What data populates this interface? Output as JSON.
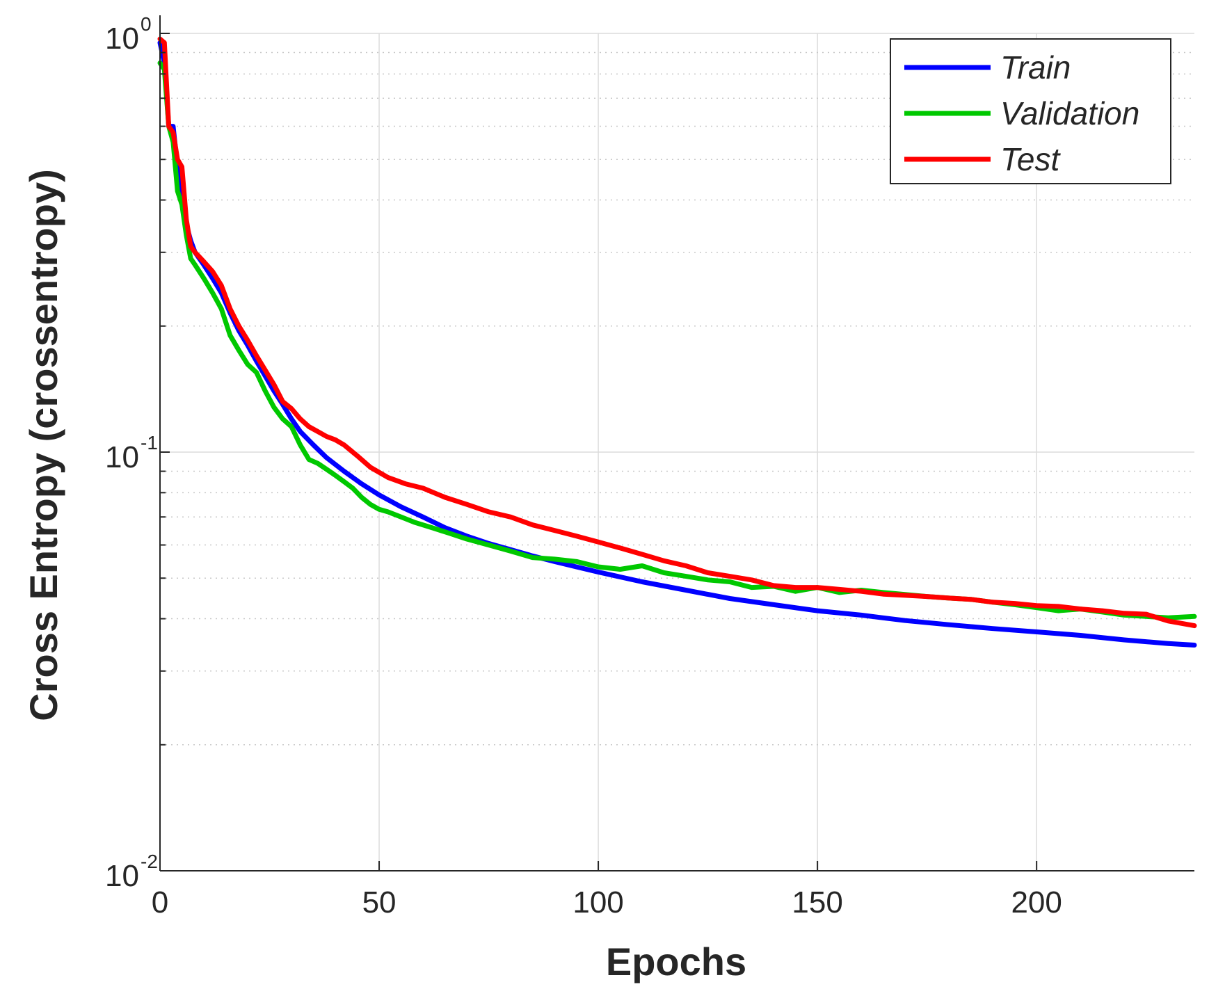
{
  "chart_data": {
    "type": "line",
    "xlabel": "Epochs",
    "ylabel": "Cross Entropy  (crossentropy)",
    "yscale": "log",
    "xlim": [
      0,
      236
    ],
    "ylim": [
      0.01,
      1
    ],
    "grid": true,
    "legend_position": "top-right",
    "x_ticks": [
      {
        "value": 0,
        "label": "0"
      },
      {
        "value": 50,
        "label": "50"
      },
      {
        "value": 100,
        "label": "100"
      },
      {
        "value": 150,
        "label": "150"
      },
      {
        "value": 200,
        "label": "200"
      }
    ],
    "y_ticks": [
      {
        "value": 1,
        "base": "10",
        "exp": "0"
      },
      {
        "value": 0.1,
        "base": "10",
        "exp": "-1"
      },
      {
        "value": 0.01,
        "base": "10",
        "exp": "-2"
      }
    ],
    "series": [
      {
        "name": "Train",
        "color": "#0000ff",
        "x": [
          0,
          1,
          2,
          3,
          4,
          5,
          6,
          7,
          8,
          10,
          12,
          14,
          16,
          18,
          20,
          22,
          24,
          26,
          28,
          30,
          32,
          35,
          38,
          42,
          46,
          50,
          55,
          60,
          65,
          70,
          75,
          80,
          85,
          90,
          95,
          100,
          110,
          120,
          130,
          140,
          150,
          160,
          170,
          180,
          190,
          200,
          210,
          220,
          230,
          236
        ],
        "y": [
          0.95,
          0.85,
          0.6,
          0.6,
          0.48,
          0.42,
          0.35,
          0.32,
          0.3,
          0.28,
          0.26,
          0.24,
          0.215,
          0.195,
          0.18,
          0.165,
          0.152,
          0.14,
          0.13,
          0.12,
          0.112,
          0.104,
          0.097,
          0.09,
          0.084,
          0.079,
          0.074,
          0.07,
          0.066,
          0.063,
          0.0605,
          0.0585,
          0.0565,
          0.0548,
          0.0532,
          0.0517,
          0.049,
          0.0468,
          0.0447,
          0.0432,
          0.0418,
          0.0408,
          0.0396,
          0.0387,
          0.0379,
          0.0372,
          0.0365,
          0.0356,
          0.0349,
          0.0346
        ]
      },
      {
        "name": "Validation",
        "color": "#00c800",
        "x": [
          0,
          1,
          2,
          3,
          4,
          5,
          6,
          7,
          8,
          10,
          12,
          14,
          16,
          18,
          20,
          22,
          24,
          26,
          28,
          30,
          32,
          34,
          36,
          38,
          40,
          42,
          44,
          46,
          48,
          50,
          52,
          55,
          58,
          62,
          66,
          70,
          75,
          80,
          85,
          90,
          95,
          100,
          105,
          110,
          115,
          120,
          125,
          130,
          135,
          140,
          145,
          150,
          155,
          160,
          165,
          170,
          175,
          180,
          185,
          190,
          195,
          200,
          205,
          210,
          215,
          220,
          225,
          230,
          236
        ],
        "y": [
          0.85,
          0.82,
          0.6,
          0.55,
          0.42,
          0.39,
          0.33,
          0.29,
          0.28,
          0.26,
          0.24,
          0.22,
          0.19,
          0.175,
          0.162,
          0.155,
          0.14,
          0.128,
          0.12,
          0.115,
          0.104,
          0.096,
          0.094,
          0.091,
          0.088,
          0.085,
          0.082,
          0.078,
          0.075,
          0.073,
          0.072,
          0.07,
          0.068,
          0.066,
          0.064,
          0.062,
          0.06,
          0.058,
          0.056,
          0.0555,
          0.0548,
          0.0532,
          0.0525,
          0.0535,
          0.0515,
          0.0505,
          0.0495,
          0.049,
          0.0475,
          0.0478,
          0.0465,
          0.0475,
          0.0462,
          0.0468,
          0.0462,
          0.0457,
          0.0452,
          0.0448,
          0.0445,
          0.0438,
          0.0432,
          0.0425,
          0.0418,
          0.0422,
          0.0415,
          0.0408,
          0.0405,
          0.0402,
          0.0405
        ]
      },
      {
        "name": "Test",
        "color": "#ff0000",
        "x": [
          0,
          1,
          2,
          3,
          4,
          5,
          6,
          7,
          8,
          10,
          12,
          14,
          16,
          18,
          20,
          22,
          24,
          26,
          28,
          30,
          32,
          34,
          36,
          38,
          40,
          42,
          45,
          48,
          52,
          56,
          60,
          65,
          70,
          75,
          80,
          85,
          90,
          95,
          100,
          105,
          110,
          115,
          120,
          125,
          130,
          135,
          140,
          145,
          150,
          155,
          160,
          165,
          170,
          175,
          180,
          185,
          190,
          195,
          200,
          205,
          210,
          215,
          220,
          225,
          230,
          236
        ],
        "y": [
          0.97,
          0.95,
          0.6,
          0.58,
          0.5,
          0.48,
          0.36,
          0.31,
          0.3,
          0.285,
          0.27,
          0.25,
          0.22,
          0.2,
          0.185,
          0.17,
          0.157,
          0.145,
          0.132,
          0.127,
          0.12,
          0.115,
          0.112,
          0.109,
          0.107,
          0.104,
          0.098,
          0.092,
          0.087,
          0.084,
          0.082,
          0.078,
          0.075,
          0.072,
          0.07,
          0.067,
          0.065,
          0.063,
          0.061,
          0.059,
          0.057,
          0.055,
          0.0535,
          0.0515,
          0.0505,
          0.0495,
          0.048,
          0.0475,
          0.0475,
          0.047,
          0.0465,
          0.0458,
          0.0455,
          0.0452,
          0.0448,
          0.0445,
          0.0438,
          0.0435,
          0.043,
          0.0428,
          0.0422,
          0.0418,
          0.0412,
          0.041,
          0.0395,
          0.0385
        ]
      }
    ]
  }
}
